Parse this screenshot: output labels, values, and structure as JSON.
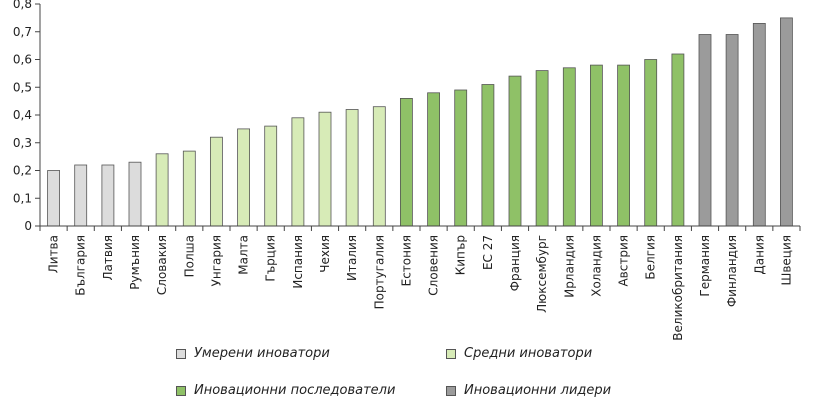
{
  "chart_data": {
    "type": "bar",
    "categories": [
      "Литва",
      "България",
      "Латвия",
      "Румъния",
      "Словакия",
      "Полша",
      "Унгария",
      "Малта",
      "Гърция",
      "Испания",
      "Чехия",
      "Италия",
      "Португалия",
      "Естония",
      "Словения",
      "Кипър",
      "ЕС 27",
      "Франция",
      "Люксембург",
      "Ирландия",
      "Холандия",
      "Австрия",
      "Белгия",
      "Великобритания",
      "Германия",
      "Финландия",
      "Дания",
      "Швеция"
    ],
    "values": [
      0.2,
      0.22,
      0.22,
      0.23,
      0.26,
      0.27,
      0.32,
      0.35,
      0.36,
      0.39,
      0.41,
      0.42,
      0.43,
      0.46,
      0.48,
      0.49,
      0.51,
      0.54,
      0.56,
      0.57,
      0.58,
      0.58,
      0.6,
      0.62,
      0.69,
      0.69,
      0.73,
      0.75
    ],
    "groups": [
      0,
      0,
      0,
      0,
      1,
      1,
      1,
      1,
      1,
      1,
      1,
      1,
      1,
      2,
      2,
      2,
      2,
      2,
      2,
      2,
      2,
      2,
      2,
      2,
      3,
      3,
      3,
      3
    ],
    "ylim": [
      0,
      0.8
    ],
    "yticks": [
      "0",
      "0,1",
      "0,2",
      "0,3",
      "0,4",
      "0,5",
      "0,6",
      "0,7",
      "0,8"
    ],
    "grid": false,
    "legend_position": "bottom",
    "legend": [
      {
        "label": "Умерени иноватори",
        "color": "#dcdcdc"
      },
      {
        "label": "Средни иноватори",
        "color": "#d7ebb7"
      },
      {
        "label": "Иновационни последователи",
        "color": "#8fc167"
      },
      {
        "label": "Иновационни лидери",
        "color": "#9b9b9b"
      }
    ]
  }
}
